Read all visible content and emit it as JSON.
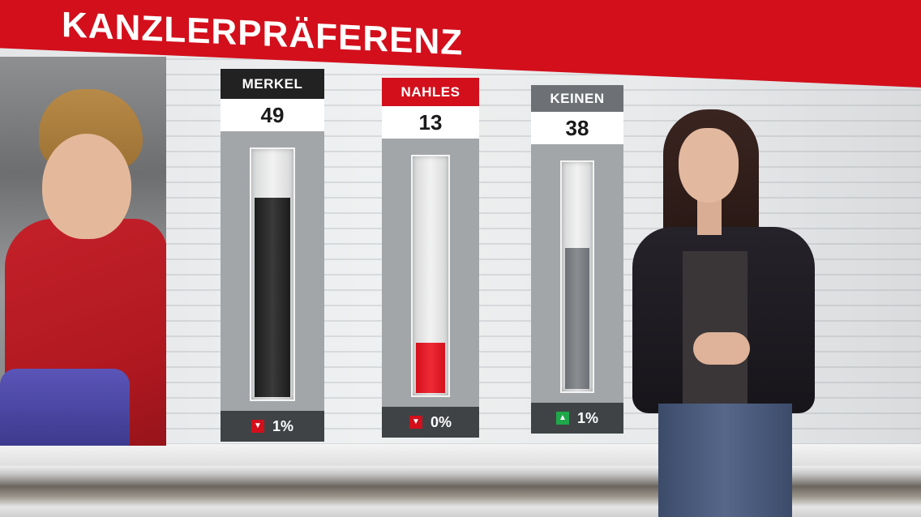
{
  "banner": {
    "title": "KANZLERPRÄFERENZ",
    "color": "#d30f1c"
  },
  "chart_data": {
    "type": "bar",
    "title": "KANZLERPRÄFERENZ",
    "categories": [
      "MERKEL",
      "NAHLES",
      "KEINEN"
    ],
    "values": [
      49,
      13,
      38
    ],
    "ylim": [
      0,
      60
    ],
    "series_colors": [
      "#1c1c1c",
      "#d30f1c",
      "#6d7175"
    ],
    "label_colors": [
      "#222222",
      "#d30f1c",
      "#6d7175"
    ],
    "changes": [
      {
        "direction": "down",
        "text": "1%"
      },
      {
        "direction": "down",
        "text": "0%"
      },
      {
        "direction": "up",
        "text": "1%"
      }
    ]
  }
}
